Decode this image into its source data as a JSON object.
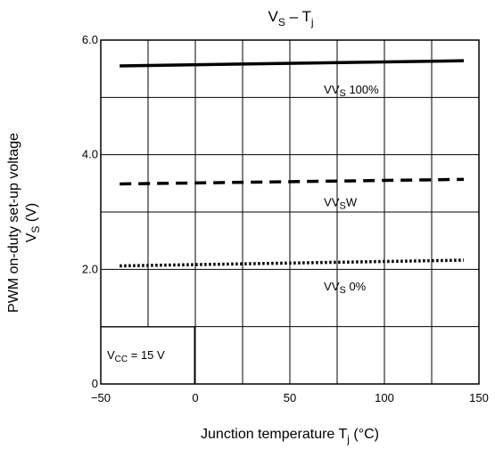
{
  "chart_data": {
    "type": "line",
    "title": {
      "main": "V",
      "sub1": "S",
      "mid": " – T",
      "sub2": "j"
    },
    "xlabel": {
      "main": "Junction temperature    T",
      "sub": "j",
      "tail": "    (°C)"
    },
    "ylabel": {
      "line1": "PWM on-duty set-up voltage",
      "line2_main": "V",
      "line2_sub": "S",
      "line2_tail": "    (V)"
    },
    "xlim": [
      -50,
      150
    ],
    "ylim": [
      0,
      6.0
    ],
    "x_ticks": [
      {
        "value": -50,
        "label": "−50"
      },
      {
        "value": 0,
        "label": "0"
      },
      {
        "value": 50,
        "label": "50"
      },
      {
        "value": 100,
        "label": "100"
      },
      {
        "value": 150,
        "label": "150"
      }
    ],
    "y_ticks": [
      {
        "value": 0,
        "label": "0"
      },
      {
        "value": 2.0,
        "label": "2.0"
      },
      {
        "value": 4.0,
        "label": "4.0"
      },
      {
        "value": 6.0,
        "label": "6.0"
      }
    ],
    "x_grid": [
      -25,
      0,
      25,
      50,
      75,
      100,
      125
    ],
    "y_grid": [
      1.0,
      2.0,
      3.0,
      4.0,
      5.0
    ],
    "grid": true,
    "series": [
      {
        "name": "VVS 100%",
        "style": "solid",
        "x": [
          -40,
          142
        ],
        "y": [
          5.55,
          5.64
        ],
        "label": {
          "main": "VV",
          "sub": "S",
          "tail": " 100%",
          "x": 68,
          "y": 5.07
        }
      },
      {
        "name": "VVSW",
        "style": "dashed",
        "x": [
          -40,
          142
        ],
        "y": [
          3.49,
          3.57
        ],
        "label": {
          "main": "VV",
          "sub": "S",
          "tail": "W",
          "x": 68,
          "y": 3.1
        }
      },
      {
        "name": "VVS 0%",
        "style": "dotted",
        "x": [
          -40,
          142
        ],
        "y": [
          2.06,
          2.16
        ],
        "label": {
          "main": "VV",
          "sub": "S",
          "tail": " 0%",
          "x": 68,
          "y": 1.63
        }
      }
    ],
    "annotation": {
      "main": "V",
      "sub": "CC",
      "tail": " = 15 V"
    }
  }
}
